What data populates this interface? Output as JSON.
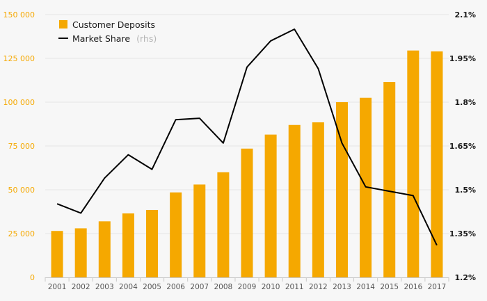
{
  "chart_data": {
    "type": "bar",
    "categories": [
      "2001",
      "2002",
      "2003",
      "2004",
      "2005",
      "2006",
      "2007",
      "2008",
      "2009",
      "2010",
      "2011",
      "2012",
      "2013",
      "2014",
      "2015",
      "2016",
      "2017"
    ],
    "series": [
      {
        "name": "Customer Deposits",
        "type": "bar",
        "axis": "left",
        "color": "#f5a800",
        "values": [
          26500,
          28000,
          32000,
          36500,
          38500,
          48500,
          53000,
          60000,
          73500,
          81500,
          87000,
          88500,
          100000,
          102500,
          111500,
          129500,
          129000
        ]
      },
      {
        "name": "Market Share",
        "legend_suffix": "(rhs)",
        "type": "line",
        "axis": "right",
        "color": "#000000",
        "values": [
          1.452,
          1.42,
          1.54,
          1.62,
          1.57,
          1.74,
          1.745,
          1.66,
          1.92,
          2.01,
          2.05,
          1.915,
          1.66,
          1.51,
          1.495,
          1.48,
          1.31
        ]
      }
    ],
    "y_left": {
      "lim": [
        0,
        150000
      ],
      "ticks": [
        0,
        25000,
        50000,
        75000,
        100000,
        125000,
        150000
      ],
      "tick_labels": [
        "0",
        "25 000",
        "50 000",
        "75 000",
        "100 000",
        "125 000",
        "150 000"
      ],
      "color": "#f5a800"
    },
    "y_right": {
      "lim": [
        1.2,
        2.1
      ],
      "ticks": [
        1.2,
        1.35,
        1.5,
        1.65,
        1.8,
        1.95,
        2.1
      ],
      "tick_labels": [
        "1.2%",
        "1.35%",
        "1.5%",
        "1.65%",
        "1.8%",
        "1.95%",
        "2.1%"
      ],
      "color": "#1a1a1a"
    },
    "grid": true,
    "legend_position": "top-left",
    "title": "",
    "xlabel": "",
    "ylabel": ""
  }
}
